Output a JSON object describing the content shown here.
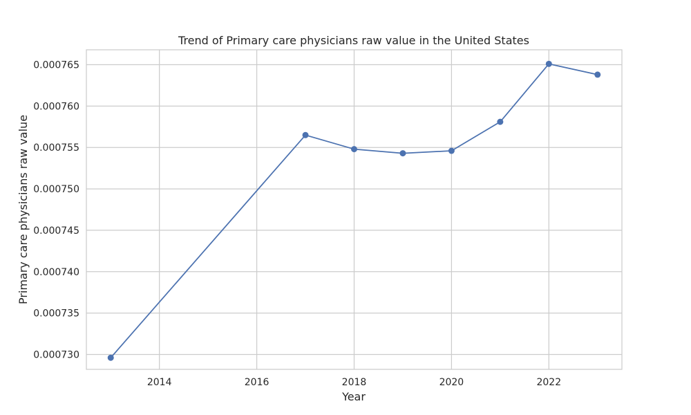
{
  "chart_data": {
    "type": "line",
    "title": "Trend of Primary care physicians raw value in the United States",
    "xlabel": "Year",
    "ylabel": "Primary care physicians raw value",
    "x_ticks": [
      "2014",
      "2016",
      "2018",
      "2020",
      "2022"
    ],
    "y_ticks": [
      "0.000730",
      "0.000735",
      "0.000740",
      "0.000745",
      "0.000750",
      "0.000755",
      "0.000760",
      "0.000765"
    ],
    "xlim": [
      2012.5,
      2023.5
    ],
    "ylim": [
      0.0007282,
      0.0007668
    ],
    "grid": true,
    "series": [
      {
        "color": "#4c72b0",
        "marker": "circle",
        "x": [
          2013,
          2017,
          2018,
          2019,
          2020,
          2021,
          2022,
          2023
        ],
        "values": [
          0.0007296,
          0.0007565,
          0.0007548,
          0.0007543,
          0.0007546,
          0.0007581,
          0.0007651,
          0.0007638
        ]
      }
    ]
  }
}
